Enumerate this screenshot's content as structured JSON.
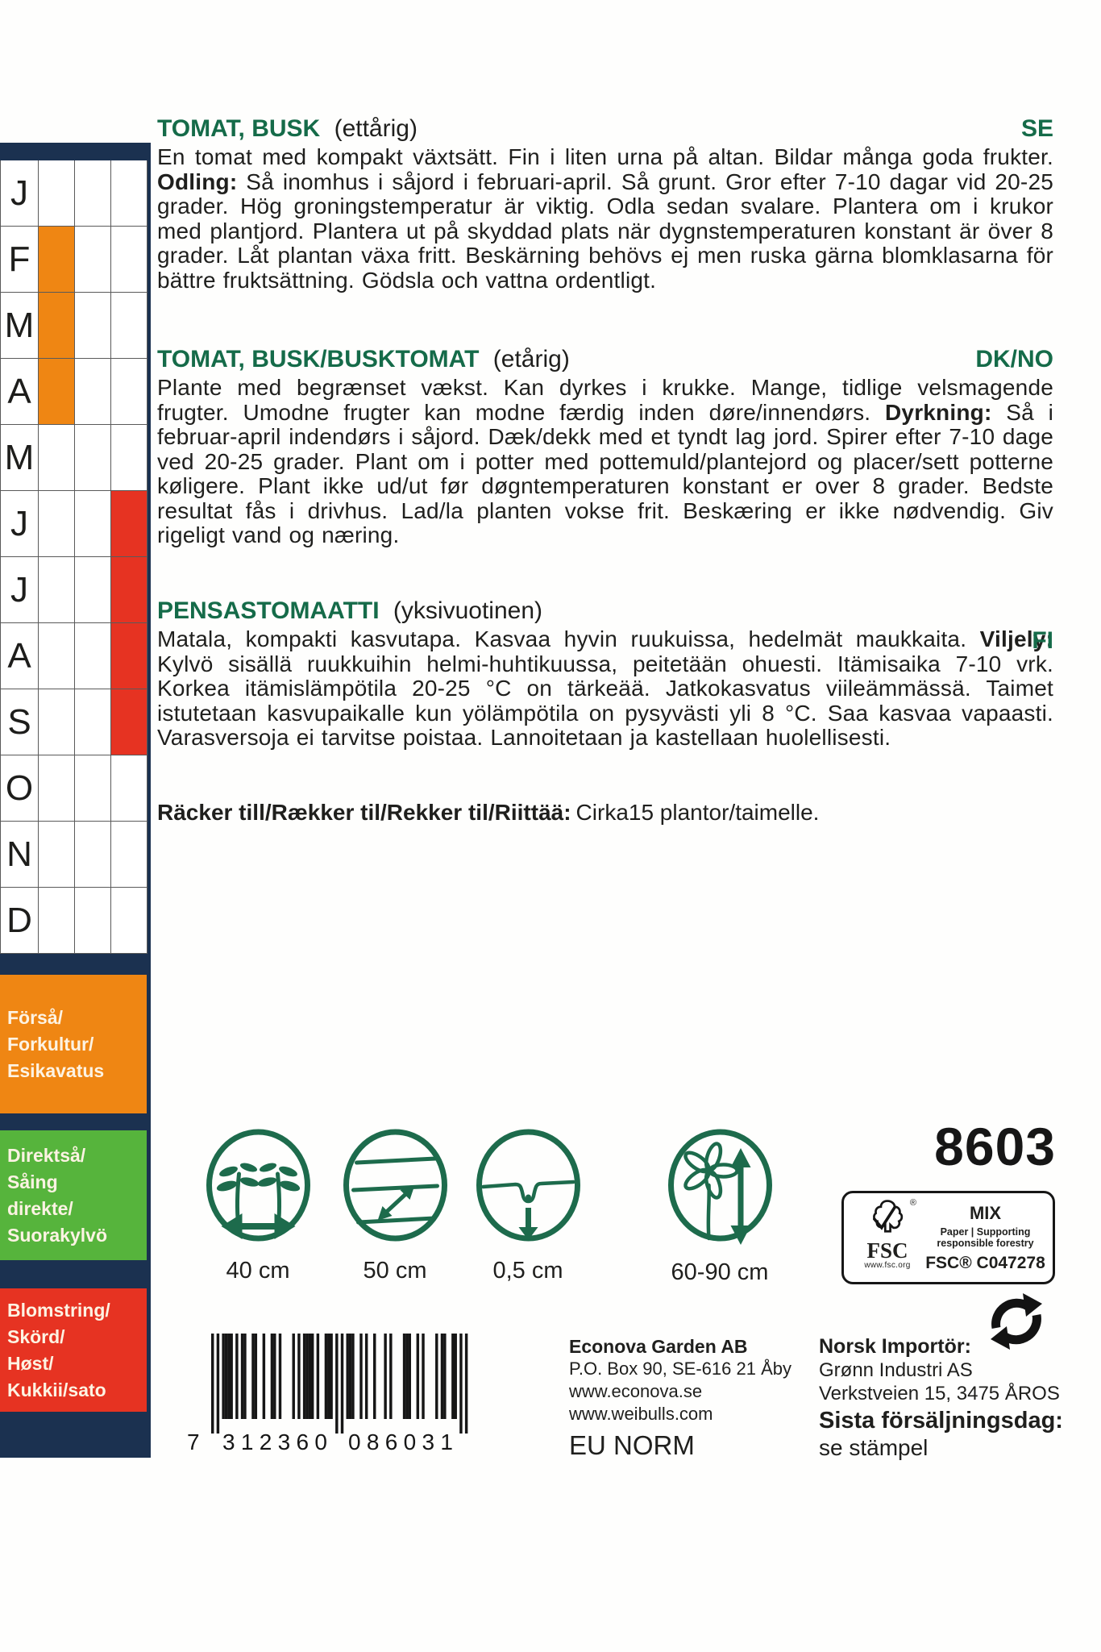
{
  "colors": {
    "accent_green": "#156b49",
    "navy": "#1b3150",
    "presow_orange": "#ef8613",
    "direct_green": "#56b43c",
    "harvest_red": "#e63322"
  },
  "sowing_calendar": {
    "columns": [
      "presow",
      "direct_sow",
      "harvest"
    ],
    "months": [
      {
        "letter": "J",
        "presow": false,
        "harvest": false
      },
      {
        "letter": "F",
        "presow": true,
        "harvest": false
      },
      {
        "letter": "M",
        "presow": true,
        "harvest": false
      },
      {
        "letter": "A",
        "presow": true,
        "harvest": false
      },
      {
        "letter": "M",
        "presow": false,
        "harvest": false
      },
      {
        "letter": "J",
        "presow": false,
        "harvest": true
      },
      {
        "letter": "J",
        "presow": false,
        "harvest": true
      },
      {
        "letter": "A",
        "presow": false,
        "harvest": true
      },
      {
        "letter": "S",
        "presow": false,
        "harvest": true
      },
      {
        "letter": "O",
        "presow": false,
        "harvest": false
      },
      {
        "letter": "N",
        "presow": false,
        "harvest": false
      },
      {
        "letter": "D",
        "presow": false,
        "harvest": false
      }
    ]
  },
  "legend": {
    "presow": {
      "label": "Förså/\nForkultur/\nEsikavatus",
      "color": "#ef8613"
    },
    "direct": {
      "label": "Direktså/\nSåing\ndirekte/\nSuorakylvö",
      "color": "#56b43c"
    },
    "harvest": {
      "label": "Blomstring/\nSkörd/\nHøst/\nKukkii/sato",
      "color": "#e63322"
    }
  },
  "sections": [
    {
      "lang_tag": "SE",
      "title": "TOMAT, BUSK",
      "subtitle": "(ettårig)",
      "body_before": "En tomat med kompakt växtsätt. Fin i liten urna på altan. Bildar många goda frukter. ",
      "body_bold": "Odling:",
      "body_after": " Så inomhus i såjord i februari-april. Så grunt. Gror efter 7-10 dagar vid 20-25 grader. Hög groningstemperatur är viktig. Odla sedan svalare. Plantera om i krukor med plantjord. Plantera ut på skyddad plats när dygnstemperaturen konstant är över 8 grader. Låt plantan växa fritt. Beskärning behövs ej men ruska gärna blomklasarna för bättre fruktsättning. Gödsla och vattna ordentligt."
    },
    {
      "lang_tag": "DK/NO",
      "title": "TOMAT, BUSK/BUSKTOMAT",
      "subtitle": "(etårig)",
      "body_before": "Plante med begrænset vækst. Kan dyrkes i krukke. Mange, tidlige velsmagende frugter. Umodne frugter kan modne færdig inden døre/innendørs. ",
      "body_bold": "Dyrkning:",
      "body_after": " Så i februar-april indendørs i såjord. Dæk/dekk med et tyndt lag jord. Spirer efter 7-10 dage ved 20-25 grader. Plant om i potter med pottemuld/plantejord og placer/sett potterne køligere. Plant ikke ud/ut før døgntemperaturen konstant er over 8 grader. Bedste resultat fås i drivhus. Lad/la planten vokse frit. Beskæring er ikke nødvendig. Giv rigeligt vand og næring."
    },
    {
      "lang_tag": "FI",
      "title": "PENSASTOMAATTI",
      "subtitle": "(yksivuotinen)",
      "body_before": "Matala, kompakti kasvutapa. Kasvaa hyvin ruukuissa, hedelmät maukkaita. ",
      "body_bold": "Viljely:",
      "body_after": " Kylvö sisällä ruukkuihin helmi-huhtikuussa, peitetään ohuesti. Itämisaika 7-10 vrk. Korkea itämislämpötila 20-25 °C on tärkeää. Jatkokasvatus viileämmässä. Taimet istutetaan kasvupaikalle kun yölämpötila on pysyvästi yli 8 °C. Saa kasvaa vapaasti. Varasversoja ei tarvitse poistaa. Lannoitetaan ja kastellaan huolellisesti."
    }
  ],
  "yield": {
    "label": "Räcker till/Rækker til/Rekker til/Riittää:",
    "value": "Cirka15 plantor/taimelle."
  },
  "spec_icons": [
    {
      "name": "plant-spacing",
      "value": "40 cm"
    },
    {
      "name": "row-spacing",
      "value": "50 cm"
    },
    {
      "name": "sowing-depth",
      "value": "0,5 cm"
    },
    {
      "name": "plant-height",
      "value": "60-90 cm"
    }
  ],
  "article_number": "8603",
  "fsc": {
    "brand": "FSC",
    "url": "www.fsc.org",
    "reg": "®",
    "grade": "MIX",
    "tagline1": "Paper | Supporting",
    "tagline2": "responsible forestry",
    "license": "FSC® C047278"
  },
  "barcode": {
    "value": "7312360086031",
    "human_first": "7",
    "human_left": "312360",
    "human_right": "086031"
  },
  "publisher": {
    "name": "Econova Garden AB",
    "address": "P.O. Box 90, SE-616 21 Åby",
    "website1": "www.econova.se",
    "website2": "www.weibulls.com"
  },
  "norm": "EU NORM",
  "importer": {
    "label": "Norsk Importör:",
    "name": "Grønn Industri AS",
    "address": "Verkstveien 15, 3475 ÅROS"
  },
  "last_sale": {
    "label": "Sista försäljningsdag:",
    "value": "se stämpel"
  }
}
